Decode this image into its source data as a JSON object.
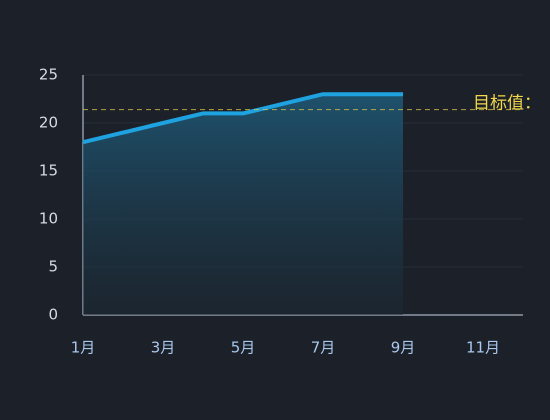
{
  "chart_data": {
    "type": "line",
    "categories": [
      "1月",
      null,
      "3月",
      null,
      "5月",
      null,
      "7月",
      null,
      "9月",
      null,
      "11月",
      null
    ],
    "series": [
      {
        "color": "#1ea3e0",
        "values": [
          18,
          19,
          20,
          21,
          21,
          22,
          23,
          23,
          23,
          null,
          null,
          null
        ]
      }
    ],
    "ylim": [
      0,
      25
    ],
    "yticks": [
      0,
      5,
      10,
      15,
      20,
      25
    ],
    "grid": true,
    "target": {
      "label": "目标值：",
      "value": 21.4,
      "color": "#d9c349"
    }
  }
}
